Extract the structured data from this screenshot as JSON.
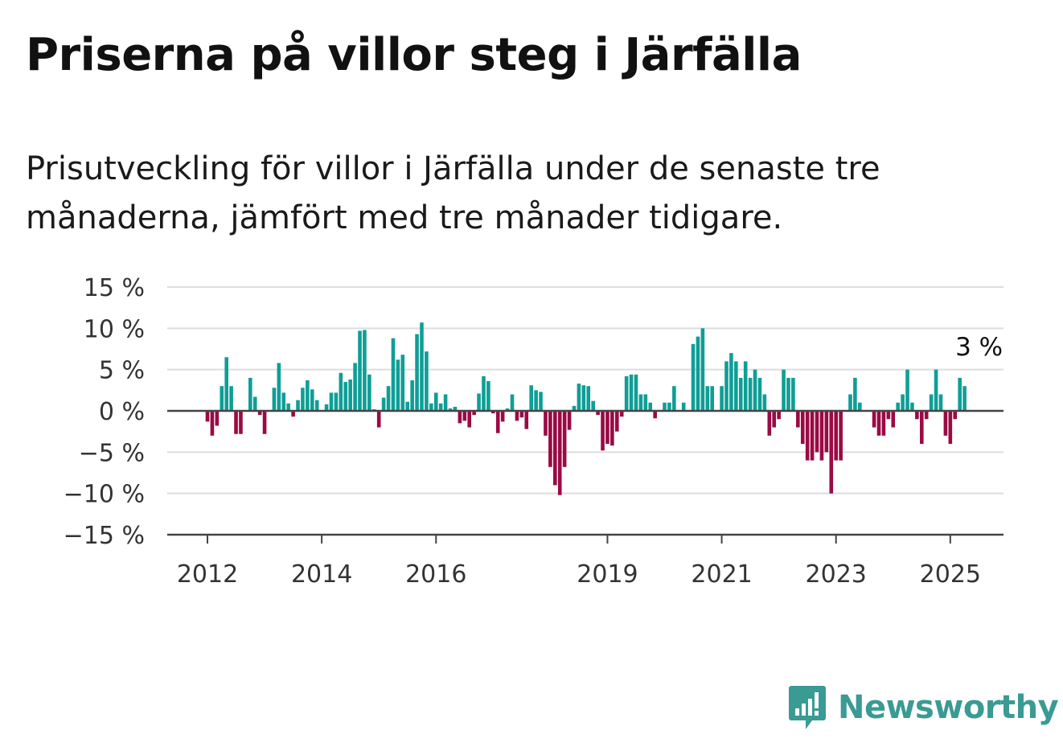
{
  "title": "Priserna på villor steg i Järfälla",
  "subtitle": "Prisutveckling för villor i Järfälla under de senaste tre månaderna, jämfört med tre månader tidigare.",
  "brand": {
    "name": "Newsworthy",
    "color": "#3a9a94"
  },
  "colors": {
    "positive": "#0f9e96",
    "negative": "#9a0a45",
    "grid": "#dddddd",
    "axis": "#444444"
  },
  "chart_data": {
    "type": "bar",
    "xlabel": "",
    "ylabel": "",
    "ylim": [
      -15,
      15
    ],
    "yticks": [
      15,
      10,
      5,
      0,
      -5,
      -10,
      -15
    ],
    "ytick_labels": [
      "15 %",
      "10 %",
      "5 %",
      "0 %",
      "−5 %",
      "−10 %",
      "−15 %"
    ],
    "xtick_labels": [
      "2012",
      "2014",
      "2016",
      "2019",
      "2021",
      "2023",
      "2025"
    ],
    "xtick_month_index": [
      0,
      24,
      48,
      84,
      108,
      132,
      156
    ],
    "start": "2012-01",
    "grid": true,
    "annotation": {
      "text": "3 %",
      "month_index": 159,
      "value": 3
    },
    "values": [
      -1.3,
      -3,
      -1.8,
      3,
      6.5,
      3,
      -2.8,
      -2.8,
      0,
      4,
      1.7,
      -0.5,
      -2.8,
      0,
      2.8,
      5.8,
      2.2,
      0.9,
      -0.7,
      1.3,
      2.8,
      3.7,
      2.6,
      1.3,
      0,
      0.8,
      2.2,
      2.2,
      4.6,
      3.5,
      3.8,
      5.8,
      9.7,
      9.8,
      4.4,
      0.2,
      -2,
      1.6,
      3,
      8.8,
      6.2,
      6.8,
      1.1,
      3.7,
      9.3,
      10.7,
      7.2,
      0.9,
      2.2,
      0.9,
      2,
      0.3,
      0.5,
      -1.5,
      -1.2,
      -2,
      -0.5,
      2.1,
      4.2,
      3.6,
      -0.3,
      -2.7,
      -1.3,
      0.3,
      2,
      -1.2,
      -0.8,
      -2.2,
      3.1,
      2.5,
      2.3,
      -3,
      -6.8,
      -9,
      -10.2,
      -6.8,
      -2.3,
      0.6,
      3.3,
      3.1,
      3,
      1.2,
      -0.5,
      -4.8,
      -4,
      -4.2,
      -2.5,
      -0.7,
      4.2,
      4.4,
      4.4,
      2,
      2,
      1,
      -0.9,
      0,
      1,
      1,
      3,
      0,
      1,
      0,
      8.1,
      9,
      10,
      3,
      3,
      0,
      3,
      6,
      7,
      6,
      4,
      6,
      4,
      5,
      4,
      2,
      -3,
      -2,
      -1,
      5,
      4,
      4,
      -2,
      -4,
      -6,
      -6,
      -5,
      -6,
      -5,
      -10,
      -6,
      -6,
      0,
      2,
      4,
      1,
      0,
      0,
      -2,
      -3,
      -3,
      -1,
      -2,
      1,
      2,
      5,
      1,
      -1,
      -4,
      -1,
      2,
      5,
      2,
      -3,
      -4,
      -1,
      4,
      3
    ]
  }
}
